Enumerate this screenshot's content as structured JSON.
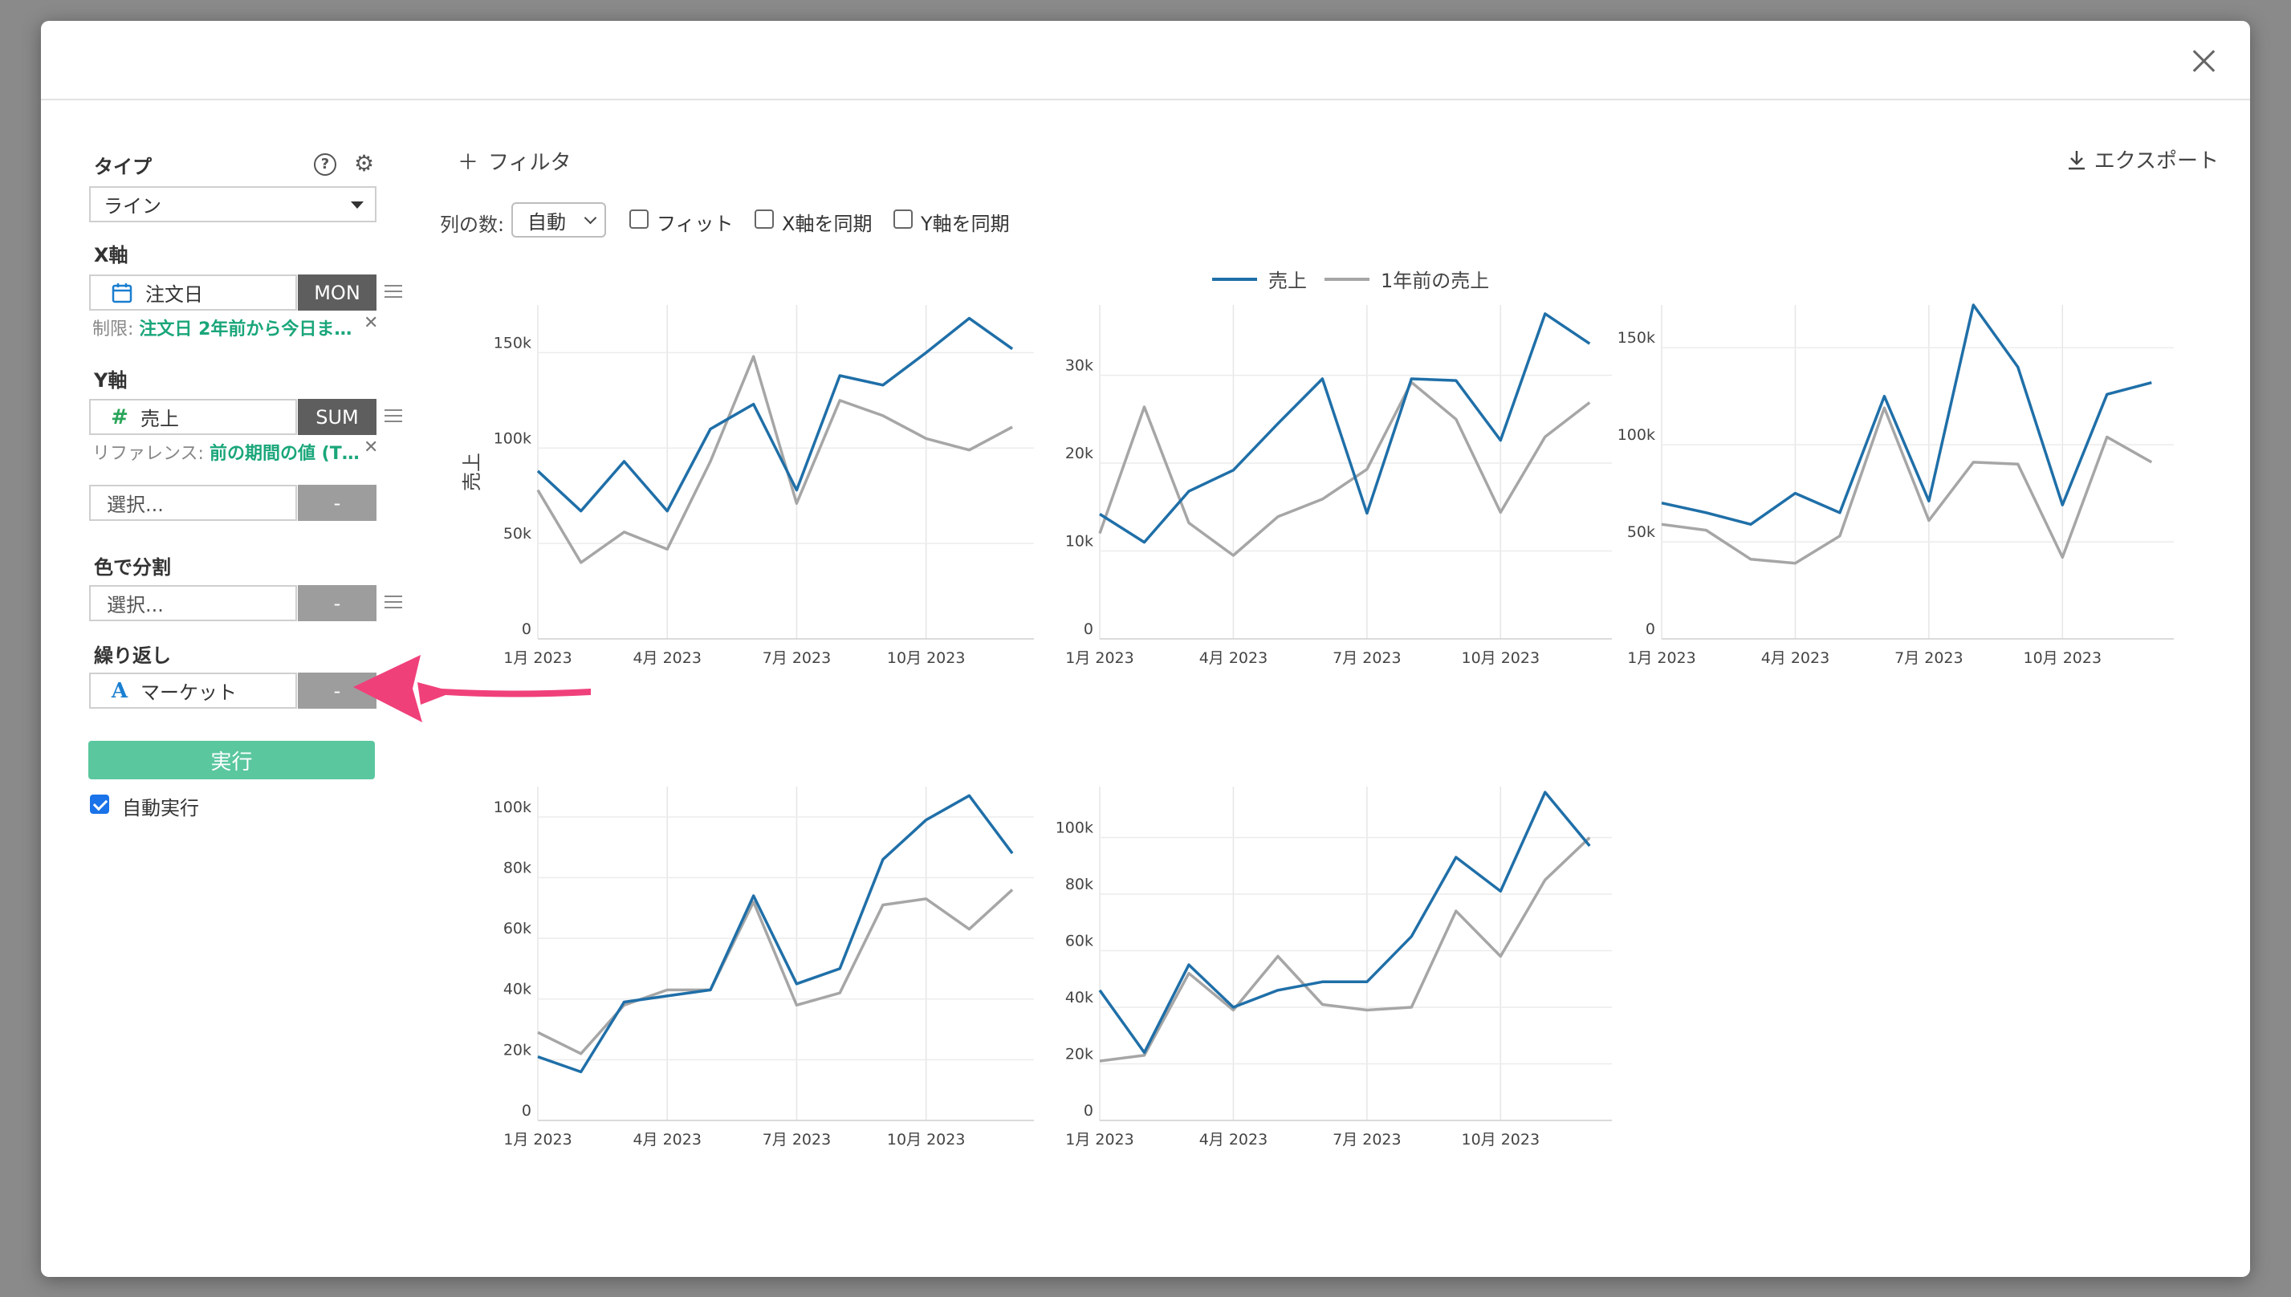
{
  "toolbar": {
    "filter_label": "フィルタ",
    "export_label": "エクスポート",
    "columns_label": "列の数:",
    "columns_value": "自動",
    "fit_label": "フィット",
    "sync_x_label": "X軸を同期",
    "sync_y_label": "Y軸を同期"
  },
  "sidebar": {
    "type_label": "タイプ",
    "type_value": "ライン",
    "x_axis_label": "X軸",
    "x_field": "注文日",
    "x_agg": "MON",
    "x_limit_prefix": "制限:",
    "x_limit_value": "注文日 2年前から今日ま…",
    "y_axis_label": "Y軸",
    "y_field": "売上",
    "y_agg": "SUM",
    "y_ref_prefix": "リファレンス:",
    "y_ref_value": "前の期間の値 (T…",
    "extra_select": "選択...",
    "extra_agg": "-",
    "color_label": "色で分割",
    "color_select": "選択...",
    "color_agg": "-",
    "repeat_label": "繰り返し",
    "repeat_field": "マーケット",
    "repeat_agg": "-",
    "run_label": "実行",
    "auto_run_label": "自動実行",
    "icons": {
      "x_field_icon": "calendar-icon",
      "y_field_icon": "hash-icon",
      "repeat_field_icon": "text-type-icon"
    }
  },
  "colors": {
    "current": "#1f6fa8",
    "previous": "#a6a6a6",
    "accent": "#5ac79f",
    "arrow": "#f0407a"
  },
  "chart_data": {
    "type": "line",
    "legend": [
      "売上",
      "1年前の売上"
    ],
    "legend_position": "top-center",
    "ylabel": "売上",
    "x": [
      "2023-01",
      "2023-02",
      "2023-03",
      "2023-04",
      "2023-05",
      "2023-06",
      "2023-07",
      "2023-08",
      "2023-09",
      "2023-10",
      "2023-11",
      "2023-12"
    ],
    "x_ticks": [
      "1月 2023",
      "4月 2023",
      "7月 2023",
      "10月 2023"
    ],
    "panels": [
      {
        "ylim": [
          0,
          175000
        ],
        "y_ticks": [
          [
            0,
            "0"
          ],
          [
            50000,
            "50k"
          ],
          [
            100000,
            "100k"
          ],
          [
            150000,
            "150k"
          ]
        ],
        "series": [
          {
            "name": "売上",
            "values": [
              88000,
              67000,
              93000,
              67000,
              110000,
              123000,
              78000,
              138000,
              133000,
              150000,
              168000,
              152000
            ]
          },
          {
            "name": "1年前の売上",
            "values": [
              78000,
              40000,
              56000,
              47000,
              93000,
              148000,
              71000,
              125000,
              117000,
              105000,
              99000,
              111000
            ]
          }
        ]
      },
      {
        "ylim": [
          0,
          38000
        ],
        "y_ticks": [
          [
            0,
            "0"
          ],
          [
            10000,
            "10k"
          ],
          [
            20000,
            "20k"
          ],
          [
            30000,
            "30k"
          ]
        ],
        "series": [
          {
            "name": "売上",
            "values": [
              14200,
              11000,
              16800,
              19200,
              24500,
              29600,
              14300,
              29600,
              29400,
              22600,
              37000,
              33600
            ]
          },
          {
            "name": "1年前の売上",
            "values": [
              12000,
              26400,
              13200,
              9500,
              13900,
              15900,
              19300,
              29200,
              25000,
              14400,
              23000,
              26900
            ]
          }
        ]
      },
      {
        "ylim": [
          0,
          172000
        ],
        "y_ticks": [
          [
            0,
            "0"
          ],
          [
            50000,
            "50k"
          ],
          [
            100000,
            "100k"
          ],
          [
            150000,
            "150k"
          ]
        ],
        "series": [
          {
            "name": "売上",
            "values": [
              70000,
              65000,
              59000,
              75000,
              65000,
              125000,
              71000,
              172000,
              140000,
              69000,
              126000,
              132000
            ]
          },
          {
            "name": "1年前の売上",
            "values": [
              59000,
              56000,
              41000,
              39000,
              53000,
              119000,
              61000,
              91000,
              90000,
              42000,
              104000,
              91000
            ]
          }
        ]
      },
      {
        "ylim": [
          0,
          110000
        ],
        "y_ticks": [
          [
            0,
            "0"
          ],
          [
            20000,
            "20k"
          ],
          [
            40000,
            "40k"
          ],
          [
            60000,
            "60k"
          ],
          [
            80000,
            "80k"
          ],
          [
            100000,
            "100k"
          ]
        ],
        "series": [
          {
            "name": "売上",
            "values": [
              21000,
              16000,
              39000,
              41000,
              43000,
              74000,
              45000,
              50000,
              86000,
              99000,
              107000,
              88000
            ]
          },
          {
            "name": "1年前の売上",
            "values": [
              29000,
              22000,
              38000,
              43000,
              43000,
              72000,
              38000,
              42000,
              71000,
              73000,
              63000,
              76000
            ]
          }
        ]
      },
      {
        "ylim": [
          0,
          118000
        ],
        "y_ticks": [
          [
            0,
            "0"
          ],
          [
            20000,
            "20k"
          ],
          [
            40000,
            "40k"
          ],
          [
            60000,
            "60k"
          ],
          [
            80000,
            "80k"
          ],
          [
            100000,
            "100k"
          ]
        ],
        "series": [
          {
            "name": "売上",
            "values": [
              46000,
              24000,
              55000,
              40000,
              46000,
              49000,
              49000,
              65000,
              93000,
              81000,
              116000,
              97000
            ]
          },
          {
            "name": "1年前の売上",
            "values": [
              21000,
              23000,
              52000,
              39000,
              58000,
              41000,
              39000,
              40000,
              74000,
              58000,
              85000,
              100000
            ]
          }
        ]
      }
    ]
  }
}
